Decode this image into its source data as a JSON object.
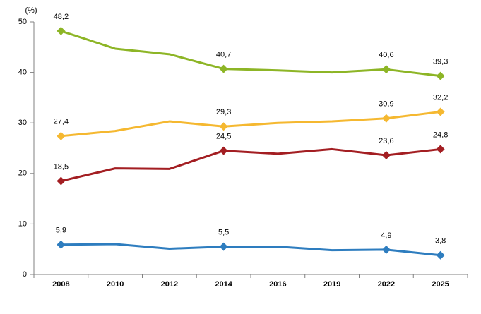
{
  "chart_data": {
    "type": "line",
    "y_label": "(%)",
    "categories": [
      "2008",
      "2010",
      "2012",
      "2014",
      "2016",
      "2019",
      "2022",
      "2025"
    ],
    "ylim": [
      0,
      50
    ],
    "yticks": [
      0,
      10,
      20,
      30,
      40,
      50
    ],
    "series": [
      {
        "color": "#8db526",
        "values": [
          48.2,
          44.7,
          43.6,
          40.7,
          40.4,
          40.0,
          40.6,
          39.3
        ],
        "value_labels": [
          "48,2",
          null,
          null,
          "40,7",
          null,
          null,
          "40,6",
          "39,3"
        ]
      },
      {
        "color": "#f5b830",
        "values": [
          27.4,
          28.4,
          30.3,
          29.3,
          30.0,
          30.3,
          30.9,
          32.2
        ],
        "value_labels": [
          "27,4",
          null,
          null,
          "29,3",
          null,
          null,
          "30,9",
          "32,2"
        ]
      },
      {
        "color": "#a31e22",
        "values": [
          18.5,
          21.0,
          20.9,
          24.5,
          23.9,
          24.8,
          23.6,
          24.8
        ],
        "value_labels": [
          "18,5",
          null,
          null,
          "24,5",
          null,
          null,
          "23,6",
          "24,8"
        ]
      },
      {
        "color": "#2e7dbf",
        "values": [
          5.9,
          6.0,
          5.1,
          5.5,
          5.5,
          4.8,
          4.9,
          3.8
        ],
        "value_labels": [
          "5,9",
          null,
          null,
          "5,5",
          null,
          null,
          "4,9",
          "3,8"
        ]
      }
    ]
  }
}
